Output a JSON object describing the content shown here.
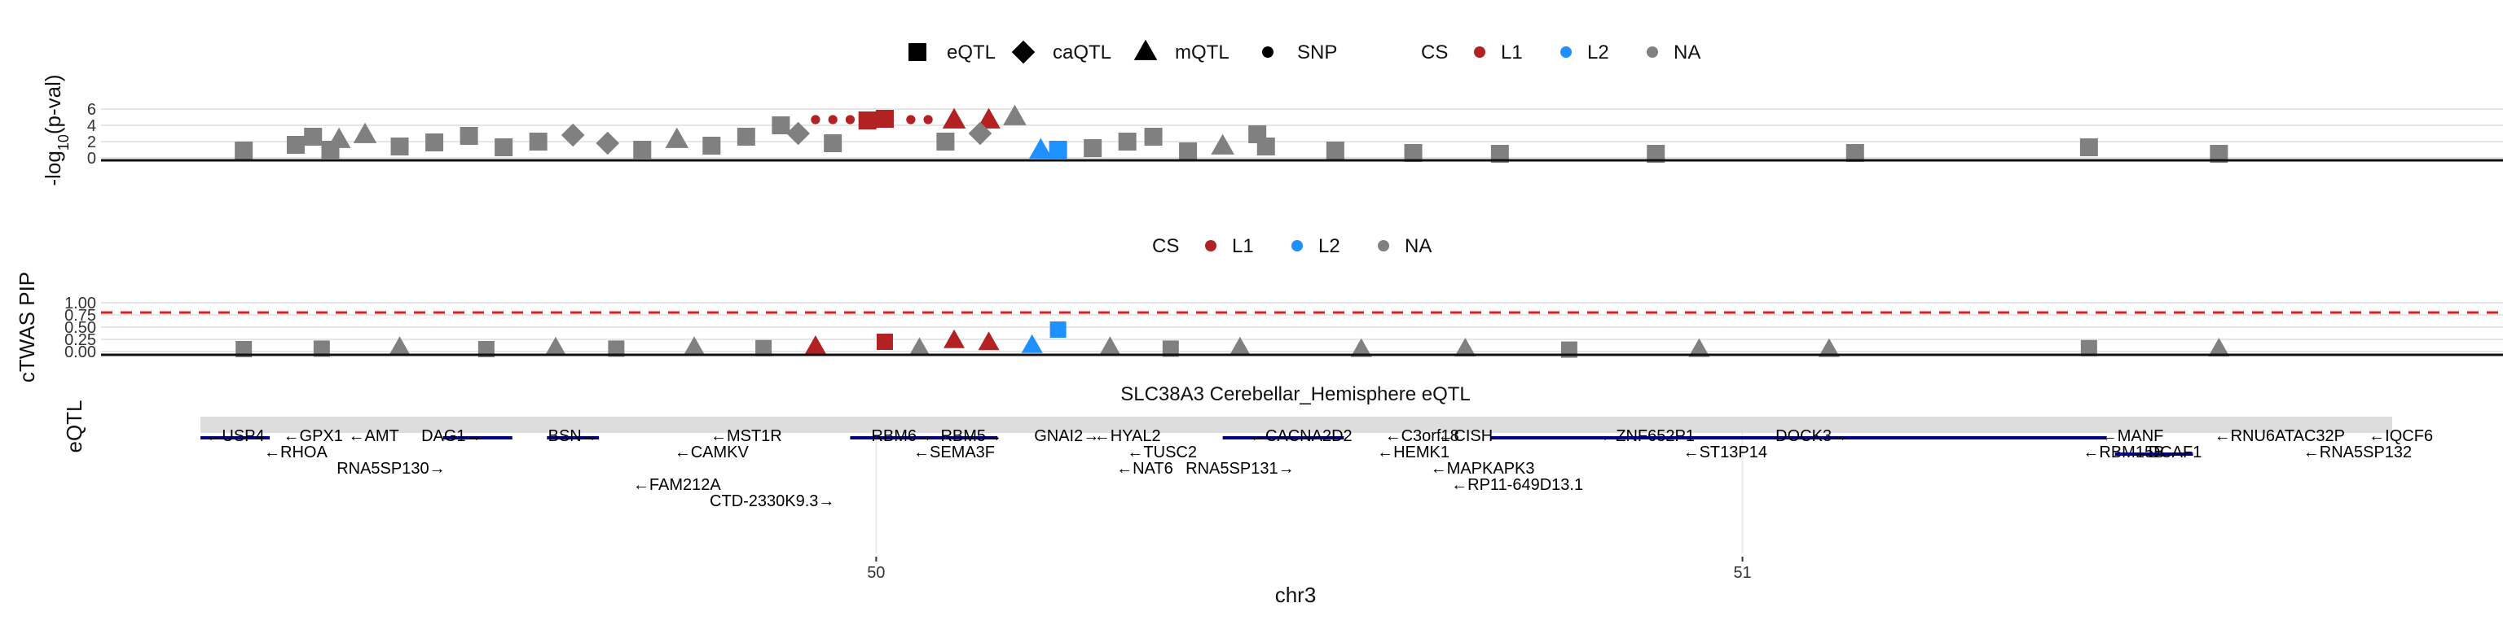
{
  "chart_data": [
    {
      "type": "scatter",
      "ylabel": "-log10(p-val)",
      "ylabel_main": "-log",
      "ylabel_sub": "10",
      "ylabel_tail": "(p-val)",
      "yticks": [
        "0",
        "2",
        "4",
        "6"
      ],
      "ylim": [
        0,
        6
      ],
      "xlim": [
        49.22,
        51.75
      ],
      "legend_placement": "top-center",
      "shape_legend": [
        {
          "label": "eQTL",
          "shape": "square"
        },
        {
          "label": "caQTL",
          "shape": "diamond"
        },
        {
          "label": "mQTL",
          "shape": "triangle"
        },
        {
          "label": "SNP",
          "shape": "circle"
        }
      ],
      "cs_legend": {
        "title": "CS",
        "entries": [
          {
            "label": "L1",
            "color": "#b22222"
          },
          {
            "label": "L2",
            "color": "#1e90ff"
          },
          {
            "label": "NA",
            "color": "#808080"
          }
        ]
      },
      "series": [
        {
          "name": "L1",
          "color": "#b22222",
          "points": [
            {
              "x": 50.01,
              "y": 4.8,
              "shape": "square"
            },
            {
              "x": 49.99,
              "y": 4.6,
              "shape": "square"
            },
            {
              "x": 50.09,
              "y": 4.6,
              "shape": "triangle"
            },
            {
              "x": 50.13,
              "y": 4.6,
              "shape": "triangle"
            },
            {
              "x": 49.93,
              "y": 4.7,
              "shape": "circle"
            },
            {
              "x": 49.95,
              "y": 4.7,
              "shape": "circle"
            },
            {
              "x": 49.97,
              "y": 4.7,
              "shape": "circle"
            },
            {
              "x": 50.04,
              "y": 4.7,
              "shape": "circle"
            },
            {
              "x": 50.06,
              "y": 4.7,
              "shape": "circle"
            }
          ]
        },
        {
          "name": "L2",
          "color": "#1e90ff",
          "points": [
            {
              "x": 50.21,
              "y": 1.0,
              "shape": "square"
            },
            {
              "x": 50.19,
              "y": 0.9,
              "shape": "triangle"
            }
          ]
        },
        {
          "name": "NA",
          "color": "#808080",
          "points": [
            {
              "x": 49.27,
              "y": 0.9,
              "shape": "square"
            },
            {
              "x": 49.33,
              "y": 1.6,
              "shape": "square"
            },
            {
              "x": 49.35,
              "y": 2.6,
              "shape": "square"
            },
            {
              "x": 49.37,
              "y": 1.0,
              "shape": "square"
            },
            {
              "x": 49.38,
              "y": 2.2,
              "shape": "triangle"
            },
            {
              "x": 49.41,
              "y": 2.8,
              "shape": "triangle"
            },
            {
              "x": 49.45,
              "y": 1.4,
              "shape": "square"
            },
            {
              "x": 49.49,
              "y": 1.9,
              "shape": "square"
            },
            {
              "x": 49.53,
              "y": 2.7,
              "shape": "square"
            },
            {
              "x": 49.57,
              "y": 1.3,
              "shape": "square"
            },
            {
              "x": 49.61,
              "y": 2.0,
              "shape": "square"
            },
            {
              "x": 49.65,
              "y": 2.8,
              "shape": "diamond"
            },
            {
              "x": 49.69,
              "y": 1.8,
              "shape": "diamond"
            },
            {
              "x": 49.73,
              "y": 1.0,
              "shape": "square"
            },
            {
              "x": 49.77,
              "y": 2.2,
              "shape": "triangle"
            },
            {
              "x": 49.81,
              "y": 1.5,
              "shape": "square"
            },
            {
              "x": 49.85,
              "y": 2.6,
              "shape": "square"
            },
            {
              "x": 49.89,
              "y": 4.0,
              "shape": "square"
            },
            {
              "x": 49.91,
              "y": 3.0,
              "shape": "diamond"
            },
            {
              "x": 49.95,
              "y": 1.8,
              "shape": "square"
            },
            {
              "x": 50.08,
              "y": 2.0,
              "shape": "square"
            },
            {
              "x": 50.12,
              "y": 3.0,
              "shape": "diamond"
            },
            {
              "x": 50.16,
              "y": 5.0,
              "shape": "triangle"
            },
            {
              "x": 50.25,
              "y": 1.2,
              "shape": "square"
            },
            {
              "x": 50.29,
              "y": 2.0,
              "shape": "square"
            },
            {
              "x": 50.32,
              "y": 2.6,
              "shape": "square"
            },
            {
              "x": 50.36,
              "y": 0.8,
              "shape": "square"
            },
            {
              "x": 50.4,
              "y": 1.4,
              "shape": "triangle"
            },
            {
              "x": 50.44,
              "y": 2.9,
              "shape": "square"
            },
            {
              "x": 50.45,
              "y": 1.4,
              "shape": "square"
            },
            {
              "x": 50.53,
              "y": 0.9,
              "shape": "square"
            },
            {
              "x": 50.62,
              "y": 0.6,
              "shape": "square"
            },
            {
              "x": 50.72,
              "y": 0.5,
              "shape": "square"
            },
            {
              "x": 50.9,
              "y": 0.5,
              "shape": "square"
            },
            {
              "x": 51.13,
              "y": 0.6,
              "shape": "square"
            },
            {
              "x": 51.4,
              "y": 1.3,
              "shape": "square"
            },
            {
              "x": 51.55,
              "y": 0.5,
              "shape": "square"
            }
          ]
        }
      ]
    },
    {
      "type": "scatter",
      "ylabel": "cTWAS PIP",
      "yticks": [
        "0.00",
        "0.25",
        "0.50",
        "0.75",
        "1.00"
      ],
      "ylim": [
        0,
        1
      ],
      "threshold": 0.8,
      "legend_placement": "top-center",
      "cs_legend": {
        "title": "CS",
        "entries": [
          {
            "label": "L1",
            "color": "#b22222"
          },
          {
            "label": "L2",
            "color": "#1e90ff"
          },
          {
            "label": "NA",
            "color": "#808080"
          }
        ]
      },
      "series": [
        {
          "name": "L1",
          "color": "#b22222",
          "points": [
            {
              "x": 50.01,
              "y": 0.2,
              "shape": "square"
            },
            {
              "x": 50.09,
              "y": 0.22,
              "shape": "triangle"
            },
            {
              "x": 50.13,
              "y": 0.18,
              "shape": "triangle"
            },
            {
              "x": 49.93,
              "y": 0.1,
              "shape": "triangle"
            }
          ]
        },
        {
          "name": "L2",
          "color": "#1e90ff",
          "points": [
            {
              "x": 50.21,
              "y": 0.45,
              "shape": "square"
            },
            {
              "x": 50.18,
              "y": 0.12,
              "shape": "triangle"
            }
          ]
        },
        {
          "name": "NA",
          "color": "#808080",
          "points": [
            {
              "x": 49.27,
              "y": 0.05,
              "shape": "square"
            },
            {
              "x": 49.36,
              "y": 0.06,
              "shape": "square"
            },
            {
              "x": 49.45,
              "y": 0.08,
              "shape": "triangle"
            },
            {
              "x": 49.55,
              "y": 0.05,
              "shape": "square"
            },
            {
              "x": 49.63,
              "y": 0.07,
              "shape": "triangle"
            },
            {
              "x": 49.7,
              "y": 0.06,
              "shape": "square"
            },
            {
              "x": 49.79,
              "y": 0.08,
              "shape": "triangle"
            },
            {
              "x": 49.87,
              "y": 0.07,
              "shape": "square"
            },
            {
              "x": 50.05,
              "y": 0.06,
              "shape": "triangle"
            },
            {
              "x": 50.27,
              "y": 0.08,
              "shape": "triangle"
            },
            {
              "x": 50.34,
              "y": 0.06,
              "shape": "square"
            },
            {
              "x": 50.42,
              "y": 0.07,
              "shape": "triangle"
            },
            {
              "x": 50.56,
              "y": 0.04,
              "shape": "triangle"
            },
            {
              "x": 50.68,
              "y": 0.05,
              "shape": "triangle"
            },
            {
              "x": 50.8,
              "y": 0.04,
              "shape": "square"
            },
            {
              "x": 50.95,
              "y": 0.04,
              "shape": "triangle"
            },
            {
              "x": 51.1,
              "y": 0.04,
              "shape": "triangle"
            },
            {
              "x": 51.4,
              "y": 0.07,
              "shape": "square"
            },
            {
              "x": 51.55,
              "y": 0.05,
              "shape": "triangle"
            }
          ]
        }
      ]
    },
    {
      "type": "table",
      "title": "SLC38A3 Cerebellar_Hemisphere eQTL",
      "ylabel": "eQTL",
      "xlabel": "chr3",
      "xticks": [
        {
          "value": 50,
          "label": "50"
        },
        {
          "value": 51,
          "label": "51"
        }
      ],
      "genes": [
        {
          "label": "USP4",
          "x": 49.26,
          "row": 0,
          "dir": "left",
          "start": 49.22,
          "end": 49.3
        },
        {
          "label": "GPX1",
          "x": 49.35,
          "row": 0,
          "dir": "left"
        },
        {
          "label": "AMT",
          "x": 49.42,
          "row": 0,
          "dir": "left"
        },
        {
          "label": "DAG1",
          "x": 49.51,
          "row": 0,
          "dir": "right",
          "start": 49.5,
          "end": 49.58
        },
        {
          "label": "BSN",
          "x": 49.65,
          "row": 0,
          "dir": "right",
          "start": 49.62,
          "end": 49.68
        },
        {
          "label": "RNA5SP130",
          "x": 49.44,
          "row": 2,
          "dir": "right"
        },
        {
          "label": "RHOA",
          "x": 49.33,
          "row": 1,
          "dir": "left"
        },
        {
          "label": "MST1R",
          "x": 49.85,
          "row": 0,
          "dir": "left"
        },
        {
          "label": "CAMKV",
          "x": 49.81,
          "row": 1,
          "dir": "left"
        },
        {
          "label": "FAM212A",
          "x": 49.77,
          "row": 3,
          "dir": "left"
        },
        {
          "label": "CTD-2330K9.3",
          "x": 49.88,
          "row": 4,
          "dir": "right"
        },
        {
          "label": "RBM6",
          "x": 50.03,
          "row": 0,
          "dir": "right",
          "start": 49.97,
          "end": 50.08
        },
        {
          "label": "RBM5",
          "x": 50.11,
          "row": 0,
          "dir": "right",
          "start": 50.08,
          "end": 50.14
        },
        {
          "label": "GNAI2",
          "x": 50.22,
          "row": 0,
          "dir": "right"
        },
        {
          "label": "HYAL2",
          "x": 50.29,
          "row": 0,
          "dir": "left"
        },
        {
          "label": "SEMA3F",
          "x": 50.09,
          "row": 1,
          "dir": "left"
        },
        {
          "label": "TUSC2",
          "x": 50.33,
          "row": 1,
          "dir": "left"
        },
        {
          "label": "NAT6",
          "x": 50.31,
          "row": 2,
          "dir": "left"
        },
        {
          "label": "RNA5SP131",
          "x": 50.42,
          "row": 2,
          "dir": "right"
        },
        {
          "label": "CACNA2D2",
          "x": 50.49,
          "row": 0,
          "dir": "left",
          "start": 50.4,
          "end": 50.54
        },
        {
          "label": "C3orf18",
          "x": 50.63,
          "row": 0,
          "dir": "left"
        },
        {
          "label": "HEMK1",
          "x": 50.62,
          "row": 1,
          "dir": "left"
        },
        {
          "label": "ZNF652P1",
          "x": 50.89,
          "row": 0,
          "dir": "left"
        },
        {
          "label": "CISH",
          "x": 50.68,
          "row": 0,
          "dir": "left"
        },
        {
          "label": "MAPKAPK3",
          "x": 50.7,
          "row": 2,
          "dir": "left"
        },
        {
          "label": "RP11-649D13.1",
          "x": 50.74,
          "row": 3,
          "dir": "left"
        },
        {
          "label": "ST13P14",
          "x": 50.98,
          "row": 1,
          "dir": "left"
        },
        {
          "label": "DOCK3",
          "x": 51.08,
          "row": 0,
          "dir": "right",
          "start": 50.71,
          "end": 51.42
        },
        {
          "label": "MANF",
          "x": 51.45,
          "row": 0,
          "dir": "left"
        },
        {
          "label": "RBM15B",
          "x": 51.44,
          "row": 1,
          "dir": "left"
        },
        {
          "label": "DCAF1",
          "x": 51.49,
          "row": 1,
          "dir": "left",
          "start": 51.43,
          "end": 51.52
        },
        {
          "label": "RNU6ATAC32P",
          "x": 51.62,
          "row": 0,
          "dir": "left"
        },
        {
          "label": "RNA5SP132",
          "x": 51.71,
          "row": 1,
          "dir": "left"
        },
        {
          "label": "IQCF6",
          "x": 51.76,
          "row": 0,
          "dir": "left"
        }
      ]
    }
  ]
}
